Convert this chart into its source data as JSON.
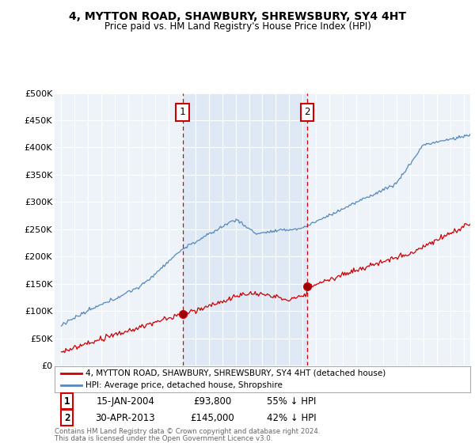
{
  "title": "4, MYTTON ROAD, SHAWBURY, SHREWSBURY, SY4 4HT",
  "subtitle": "Price paid vs. HM Land Registry's House Price Index (HPI)",
  "ylim": [
    0,
    500000
  ],
  "xlim_start": 1994.5,
  "xlim_end": 2025.5,
  "yticks": [
    0,
    50000,
    100000,
    150000,
    200000,
    250000,
    300000,
    350000,
    400000,
    450000,
    500000
  ],
  "ytick_labels": [
    "£0",
    "£50K",
    "£100K",
    "£150K",
    "£200K",
    "£250K",
    "£300K",
    "£350K",
    "£400K",
    "£450K",
    "£500K"
  ],
  "sale1_x": 2004.04,
  "sale1_y": 93800,
  "sale2_x": 2013.33,
  "sale2_y": 145000,
  "line_color_red": "#cc0000",
  "line_color_blue": "#5588bb",
  "annotation_color": "#cc0000",
  "shade_color": "#dde8f5",
  "legend_label_red": "4, MYTTON ROAD, SHAWBURY, SHREWSBURY, SY4 4HT (detached house)",
  "legend_label_blue": "HPI: Average price, detached house, Shropshire",
  "sale1_date": "15-JAN-2004",
  "sale1_price": "£93,800",
  "sale1_pct": "55% ↓ HPI",
  "sale2_date": "30-APR-2013",
  "sale2_price": "£145,000",
  "sale2_pct": "42% ↓ HPI",
  "footer1": "Contains HM Land Registry data © Crown copyright and database right 2024.",
  "footer2": "This data is licensed under the Open Government Licence v3.0.",
  "bg_color": "#ffffff",
  "plot_bg_color": "#eef3fa",
  "grid_color": "#ffffff"
}
